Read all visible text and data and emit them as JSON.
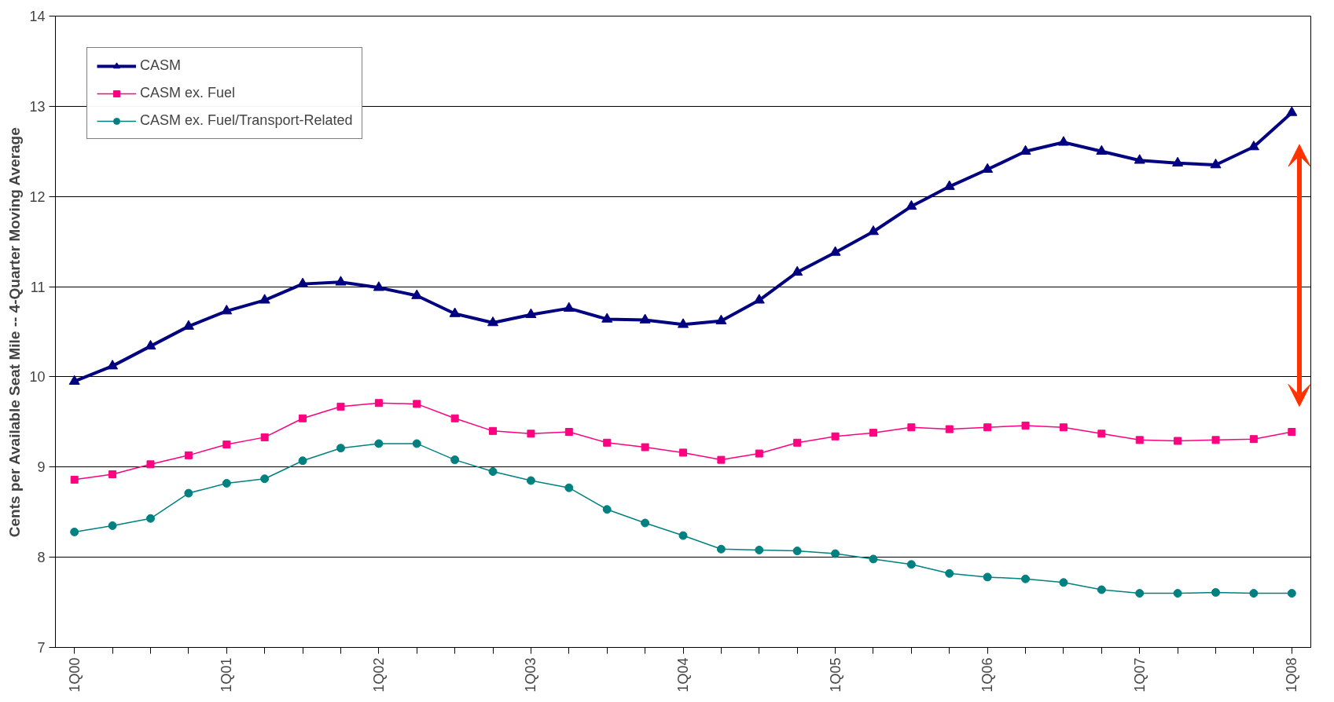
{
  "chart_data": {
    "type": "line",
    "ylabel": "Cents per Available Seat Mile -- 4-Quarter Moving Average",
    "categories": [
      "1Q00",
      null,
      null,
      null,
      "1Q01",
      null,
      null,
      null,
      "1Q02",
      null,
      null,
      null,
      "1Q03",
      null,
      null,
      null,
      "1Q04",
      null,
      null,
      null,
      "1Q05",
      null,
      null,
      null,
      "1Q06",
      null,
      null,
      null,
      "1Q07",
      null,
      null,
      null,
      "1Q08"
    ],
    "series": [
      {
        "name": "CASM",
        "color": "#000080",
        "marker": "triangle",
        "values": [
          9.95,
          10.12,
          10.34,
          10.56,
          10.73,
          10.85,
          11.03,
          11.05,
          10.99,
          10.9,
          10.7,
          10.6,
          10.69,
          10.76,
          10.64,
          10.63,
          10.58,
          10.62,
          10.85,
          11.16,
          11.38,
          11.61,
          11.89,
          12.11,
          12.3,
          12.5,
          12.6,
          12.5,
          12.4,
          12.37,
          12.35,
          12.55,
          12.93
        ]
      },
      {
        "name": "CASM ex. Fuel",
        "color": "#ff0080",
        "marker": "square",
        "values": [
          8.86,
          8.92,
          9.03,
          9.13,
          9.25,
          9.33,
          9.54,
          9.67,
          9.71,
          9.7,
          9.54,
          9.4,
          9.37,
          9.39,
          9.27,
          9.22,
          9.16,
          9.08,
          9.15,
          9.27,
          9.34,
          9.38,
          9.44,
          9.42,
          9.44,
          9.46,
          9.44,
          9.37,
          9.3,
          9.29,
          9.3,
          9.31,
          9.39
        ]
      },
      {
        "name": "CASM ex. Fuel/Transport-Related",
        "color": "#008080",
        "marker": "circle",
        "values": [
          8.28,
          8.35,
          8.43,
          8.71,
          8.82,
          8.87,
          9.07,
          9.21,
          9.26,
          9.26,
          9.08,
          8.95,
          8.85,
          8.77,
          8.53,
          8.38,
          8.24,
          8.09,
          8.08,
          8.07,
          8.04,
          7.98,
          7.92,
          7.82,
          7.78,
          7.76,
          7.72,
          7.64,
          7.6,
          7.6,
          7.61,
          7.6,
          7.6
        ]
      }
    ],
    "ylim": [
      7,
      14
    ],
    "yticks": [
      7,
      8,
      9,
      10,
      11,
      12,
      13,
      14
    ],
    "grid": "y",
    "legend": "top left",
    "line_style": "solid"
  }
}
